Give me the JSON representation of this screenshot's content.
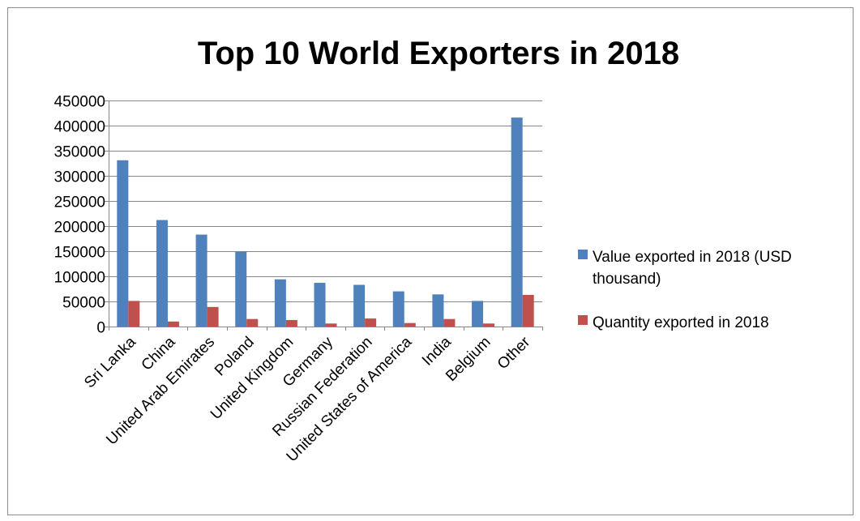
{
  "chart_data": {
    "type": "bar",
    "title": "Top 10 World Exporters in 2018",
    "xlabel": "",
    "ylabel": "",
    "ylim": [
      0,
      450000
    ],
    "yticks": [
      0,
      50000,
      100000,
      150000,
      200000,
      250000,
      300000,
      350000,
      400000,
      450000
    ],
    "grid": true,
    "legend_position": "right",
    "categories": [
      "Sri Lanka",
      "China",
      "United Arab Emirates",
      "Poland",
      "United Kingdom",
      "Germany",
      "Russian Federation",
      "United States of America",
      "India",
      "Belgium",
      "Other"
    ],
    "series": [
      {
        "name": "Value exported in 2018 (USD thousand)",
        "legend_lines": [
          "Value exported in 2018 (USD",
          "thousand)"
        ],
        "color": "#4f81bd",
        "values": [
          331000,
          212000,
          183000,
          149000,
          94000,
          87000,
          83000,
          70000,
          64000,
          51000,
          416000
        ]
      },
      {
        "name": "Quantity exported in 2018",
        "legend_lines": [
          "Quantity exported in 2018"
        ],
        "color": "#c0504d",
        "values": [
          51000,
          10000,
          39000,
          15000,
          13000,
          6000,
          16000,
          7000,
          15000,
          6000,
          63000
        ]
      }
    ]
  }
}
